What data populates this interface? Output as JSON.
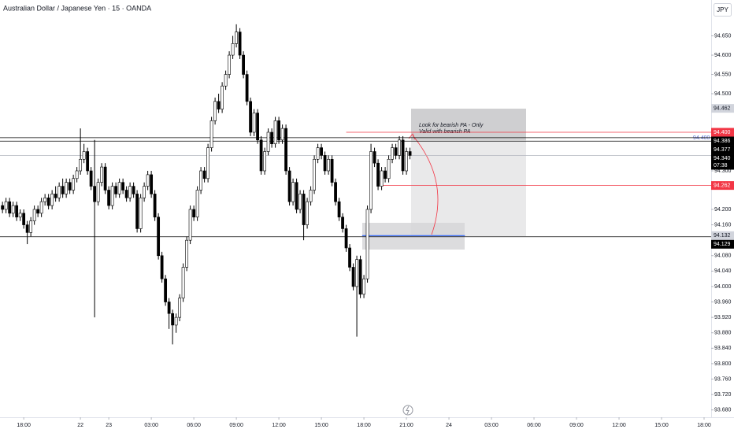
{
  "header": {
    "symbol": "Australian Dollar / Japanese Yen · 15 · OANDA",
    "currency": "JPY"
  },
  "chart_data": {
    "type": "candlestick",
    "x": [
      -6,
      -5,
      -4,
      -3,
      -2,
      -1,
      0,
      1,
      2,
      3,
      4,
      5,
      6,
      7,
      8,
      9,
      10,
      11,
      12,
      13,
      14,
      15,
      16,
      17,
      18,
      19,
      20,
      21,
      22,
      23,
      24,
      25,
      26,
      27,
      28,
      29,
      30,
      31,
      32,
      33,
      34,
      35,
      36,
      37,
      38,
      39,
      40,
      41,
      42,
      43,
      44,
      45,
      46,
      47,
      48,
      49,
      50,
      51,
      52,
      53,
      54,
      55,
      56,
      57,
      58,
      59,
      60,
      61,
      62,
      63,
      64,
      65,
      66,
      67,
      68,
      69,
      70,
      71,
      72,
      73,
      74,
      75,
      76,
      77,
      78,
      79,
      80,
      81,
      82,
      83,
      84,
      85,
      86,
      87,
      88,
      89,
      90,
      91,
      92,
      93,
      94,
      95,
      96,
      97,
      98,
      99,
      100,
      101,
      102,
      103,
      104,
      105,
      106,
      107,
      108,
      109
    ],
    "open": [
      94.21,
      94.2,
      94.22,
      94.19,
      94.21,
      94.18,
      94.19,
      94.16,
      94.14,
      94.17,
      94.2,
      94.19,
      94.22,
      94.23,
      94.21,
      94.24,
      94.23,
      94.26,
      94.24,
      94.27,
      94.25,
      94.28,
      94.3,
      94.33,
      94.35,
      94.3,
      94.26,
      94.22,
      94.27,
      94.31,
      94.25,
      94.21,
      94.26,
      94.24,
      94.27,
      94.25,
      94.23,
      94.26,
      94.24,
      94.15,
      94.23,
      94.26,
      94.29,
      94.24,
      94.18,
      94.08,
      94.02,
      93.96,
      93.93,
      93.9,
      93.92,
      93.97,
      94.05,
      94.12,
      94.2,
      94.18,
      94.25,
      94.3,
      94.28,
      94.36,
      94.43,
      94.48,
      94.46,
      94.52,
      94.55,
      94.6,
      94.63,
      94.66,
      94.6,
      94.55,
      94.48,
      94.4,
      94.45,
      94.38,
      94.3,
      94.35,
      94.4,
      94.37,
      94.43,
      94.38,
      94.41,
      94.3,
      94.22,
      94.27,
      94.2,
      94.24,
      94.16,
      94.22,
      94.25,
      94.33,
      94.36,
      94.34,
      94.3,
      94.33,
      94.27,
      94.22,
      94.18,
      94.15,
      94.1,
      94.05,
      94.0,
      94.07,
      93.98,
      94.02,
      94.2,
      94.35,
      94.32,
      94.26,
      94.3,
      94.28,
      94.33,
      94.36,
      94.34,
      94.38,
      94.3,
      94.35
    ],
    "high": [
      94.22,
      94.23,
      94.23,
      94.22,
      94.22,
      94.2,
      94.2,
      94.17,
      94.18,
      94.21,
      94.21,
      94.23,
      94.24,
      94.24,
      94.25,
      94.26,
      94.27,
      94.28,
      94.28,
      94.28,
      94.29,
      94.31,
      94.41,
      94.37,
      94.36,
      94.31,
      94.38,
      94.28,
      94.32,
      94.32,
      94.26,
      94.27,
      94.27,
      94.28,
      94.28,
      94.26,
      94.27,
      94.27,
      94.25,
      94.24,
      94.27,
      94.3,
      94.3,
      94.25,
      94.19,
      94.09,
      94.03,
      93.97,
      93.94,
      93.93,
      93.98,
      94.06,
      94.13,
      94.21,
      94.21,
      94.26,
      94.31,
      94.31,
      94.37,
      94.44,
      94.49,
      94.5,
      94.53,
      94.56,
      94.61,
      94.65,
      94.68,
      94.67,
      94.61,
      94.56,
      94.49,
      94.46,
      94.46,
      94.39,
      94.36,
      94.41,
      94.41,
      94.44,
      94.44,
      94.42,
      94.42,
      94.31,
      94.28,
      94.28,
      94.25,
      94.25,
      94.23,
      94.26,
      94.34,
      94.37,
      94.37,
      94.35,
      94.34,
      94.34,
      94.28,
      94.23,
      94.19,
      94.16,
      94.11,
      94.06,
      94.08,
      94.08,
      94.03,
      94.21,
      94.37,
      94.36,
      94.33,
      94.31,
      94.31,
      94.34,
      94.37,
      94.37,
      94.39,
      94.39,
      94.36,
      94.36
    ],
    "low": [
      94.19,
      94.19,
      94.18,
      94.18,
      94.17,
      94.17,
      94.15,
      94.11,
      94.13,
      94.16,
      94.18,
      94.18,
      94.21,
      94.2,
      94.2,
      94.22,
      94.22,
      94.23,
      94.23,
      94.24,
      94.24,
      94.27,
      94.29,
      94.32,
      94.29,
      94.25,
      93.92,
      94.21,
      94.26,
      94.24,
      94.2,
      94.2,
      94.23,
      94.23,
      94.24,
      94.22,
      94.22,
      94.23,
      94.14,
      94.14,
      94.22,
      94.25,
      94.23,
      94.17,
      94.07,
      94.01,
      93.95,
      93.89,
      93.85,
      93.88,
      93.91,
      93.96,
      94.04,
      94.11,
      94.17,
      94.17,
      94.24,
      94.27,
      94.27,
      94.35,
      94.42,
      94.45,
      94.45,
      94.51,
      94.54,
      94.59,
      94.62,
      94.59,
      94.54,
      94.47,
      94.39,
      94.39,
      94.37,
      94.29,
      94.29,
      94.34,
      94.36,
      94.36,
      94.37,
      94.37,
      94.29,
      94.21,
      94.21,
      94.19,
      94.19,
      94.12,
      94.15,
      94.21,
      94.24,
      94.32,
      94.33,
      94.29,
      94.29,
      94.26,
      94.21,
      94.17,
      94.14,
      94.09,
      94.04,
      93.99,
      93.87,
      93.97,
      93.97,
      94.01,
      94.19,
      94.31,
      94.25,
      94.25,
      94.27,
      94.27,
      94.32,
      94.33,
      94.33,
      94.29,
      94.29,
      94.33
    ],
    "close": [
      94.2,
      94.22,
      94.19,
      94.21,
      94.18,
      94.19,
      94.16,
      94.14,
      94.17,
      94.2,
      94.19,
      94.22,
      94.23,
      94.21,
      94.24,
      94.23,
      94.26,
      94.24,
      94.27,
      94.25,
      94.28,
      94.3,
      94.33,
      94.35,
      94.3,
      94.26,
      94.22,
      94.27,
      94.31,
      94.25,
      94.21,
      94.26,
      94.24,
      94.27,
      94.25,
      94.23,
      94.26,
      94.24,
      94.15,
      94.23,
      94.26,
      94.29,
      94.24,
      94.18,
      94.08,
      94.02,
      93.96,
      93.93,
      93.9,
      93.92,
      93.97,
      94.05,
      94.12,
      94.2,
      94.18,
      94.25,
      94.3,
      94.28,
      94.36,
      94.43,
      94.48,
      94.46,
      94.52,
      94.55,
      94.6,
      94.63,
      94.66,
      94.6,
      94.55,
      94.48,
      94.4,
      94.45,
      94.38,
      94.3,
      94.35,
      94.4,
      94.37,
      94.43,
      94.38,
      94.41,
      94.3,
      94.22,
      94.27,
      94.2,
      94.24,
      94.16,
      94.22,
      94.25,
      94.33,
      94.36,
      94.34,
      94.3,
      94.33,
      94.27,
      94.22,
      94.18,
      94.15,
      94.1,
      94.05,
      94.0,
      94.07,
      93.98,
      94.02,
      94.2,
      94.35,
      94.32,
      94.26,
      94.3,
      94.28,
      94.33,
      94.36,
      94.34,
      94.38,
      94.3,
      94.35,
      94.34
    ],
    "up_color": "#ffffff",
    "down_color": "#000000",
    "grid": false,
    "xlim": [
      -6.7,
      194
    ],
    "xticks": [
      {
        "value": 0,
        "label": "18:00"
      },
      {
        "value": 16,
        "label": "22"
      },
      {
        "value": 24,
        "label": "23"
      },
      {
        "value": 36,
        "label": "03:00"
      },
      {
        "value": 48,
        "label": "06:00"
      },
      {
        "value": 60,
        "label": "09:00"
      },
      {
        "value": 72,
        "label": "12:00"
      },
      {
        "value": 84,
        "label": "15:00"
      },
      {
        "value": 96,
        "label": "18:00"
      },
      {
        "value": 108,
        "label": "21:00"
      },
      {
        "value": 120,
        "label": "24"
      },
      {
        "value": 132,
        "label": "03:00"
      },
      {
        "value": 144,
        "label": "06:00"
      },
      {
        "value": 156,
        "label": "09:00"
      },
      {
        "value": 168,
        "label": "12:00"
      },
      {
        "value": 180,
        "label": "15:00"
      },
      {
        "value": 192,
        "label": "18:00"
      }
    ],
    "ylim": [
      93.661,
      94.743
    ],
    "yticks": [
      {
        "value": 94.65,
        "label": "94.650"
      },
      {
        "value": 94.6,
        "label": "94.600"
      },
      {
        "value": 94.55,
        "label": "94.550"
      },
      {
        "value": 94.5,
        "label": "94.500"
      },
      {
        "value": 94.3,
        "label": "94.300"
      },
      {
        "value": 94.2,
        "label": "94.200"
      },
      {
        "value": 94.16,
        "label": "94.160"
      },
      {
        "value": 94.08,
        "label": "94.080"
      },
      {
        "value": 94.04,
        "label": "94.040"
      },
      {
        "value": 94,
        "label": "94.000"
      },
      {
        "value": 93.96,
        "label": "93.960"
      },
      {
        "value": 93.92,
        "label": "93.920"
      },
      {
        "value": 93.88,
        "label": "93.880"
      },
      {
        "value": 93.84,
        "label": "93.840"
      },
      {
        "value": 93.8,
        "label": "93.800"
      },
      {
        "value": 93.76,
        "label": "93.760"
      },
      {
        "value": 93.72,
        "label": "93.720"
      },
      {
        "value": 93.68,
        "label": "93.680"
      }
    ],
    "levels": [
      {
        "value": 94.462,
        "label": "94.462",
        "color": "#d1d4dc"
      },
      {
        "value": 94.4,
        "label": "94.400",
        "color": "#f23645",
        "line_color": "#f23645",
        "from": 91
      },
      {
        "value": 94.386,
        "label": "94.386",
        "color": "#000000",
        "line_color": "#000000"
      },
      {
        "value": 94.377,
        "label": "94.377",
        "color": "#000000",
        "line_color": "#000000"
      },
      {
        "value": 94.34,
        "label": "94.340",
        "color": "#000000",
        "line_color": "#b2b5be"
      },
      {
        "value": 94.262,
        "label": "94.262",
        "color": "#f23645",
        "line_color": "#f23645",
        "from": 101
      },
      {
        "value": 94.132,
        "label": "94.132",
        "color": "#d1d4dc",
        "line_color": "#2962ff",
        "from": 95.5,
        "to": 124.5
      },
      {
        "value": 94.129,
        "label": "94.129",
        "color": "#000000",
        "line_color": "#000000"
      }
    ],
    "countdown": "07:38",
    "annotations": [
      "Look for bearish PA - Only",
      "Valid with bearish PA",
      "94.400"
    ]
  }
}
